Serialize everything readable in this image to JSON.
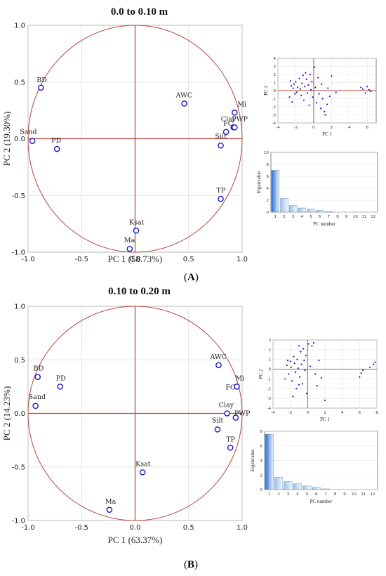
{
  "figure": {
    "panels": [
      {
        "id": "A",
        "label_open": "(",
        "label_letter": "A",
        "label_close": ")",
        "chart_data": {
          "type": "scatter",
          "title": "0.0 to 0.10 m",
          "xlabel": "PC 1 (58.73%)",
          "ylabel": "PC 2 (19.30%)",
          "xlim": [
            -1.0,
            1.0
          ],
          "ylim": [
            -1.0,
            1.0
          ],
          "xticks": [
            "-1.0",
            "-0.5",
            "0.0",
            "0.5",
            "1.0"
          ],
          "yticks": [
            "1.0",
            "0.5",
            "0.0",
            "-0.5",
            "-1.0"
          ],
          "points": [
            {
              "label": "BD",
              "x": -0.88,
              "y": 0.45
            },
            {
              "label": "Sand",
              "x": -0.96,
              "y": -0.02
            },
            {
              "label": "PD",
              "x": -0.73,
              "y": -0.09
            },
            {
              "label": "AWC",
              "x": 0.46,
              "y": 0.31
            },
            {
              "label": "FC",
              "x": 0.85,
              "y": 0.06
            },
            {
              "label": "Mi",
              "x": 0.93,
              "y": 0.23
            },
            {
              "label": "Clay",
              "x": 0.92,
              "y": 0.1
            },
            {
              "label": "PWP",
              "x": 0.93,
              "y": 0.1
            },
            {
              "label": "Silt",
              "x": 0.8,
              "y": -0.06
            },
            {
              "label": "TP",
              "x": 0.8,
              "y": -0.53
            },
            {
              "label": "Ksat",
              "x": 0.01,
              "y": -0.81
            },
            {
              "label": "Ma",
              "x": -0.05,
              "y": -0.97
            }
          ],
          "inset_scores": {
            "xlabel": "PC 1",
            "ylabel": "PC 2",
            "xticks": [
              "-4",
              "-2",
              "0",
              "2",
              "4",
              "6"
            ],
            "yticks": [
              "4",
              "3",
              "2",
              "1",
              "0",
              "-1",
              "-2",
              "-3",
              "-4"
            ],
            "xlim": [
              -4,
              7
            ],
            "ylim": [
              -4,
              4
            ],
            "points": [
              [
                -2.6,
                1.2
              ],
              [
                -2.5,
                0.6
              ],
              [
                -2.3,
                0.3
              ],
              [
                -2.2,
                0.8
              ],
              [
                -2.0,
                1.1
              ],
              [
                -1.9,
                -0.2
              ],
              [
                -1.8,
                0.4
              ],
              [
                -1.6,
                1.5
              ],
              [
                -1.5,
                0.2
              ],
              [
                -1.4,
                -0.6
              ],
              [
                -1.3,
                0.9
              ],
              [
                -1.2,
                1.9
              ],
              [
                -1.1,
                -1.2
              ],
              [
                -1.0,
                0.5
              ],
              [
                -0.9,
                2.2
              ],
              [
                -0.8,
                1.4
              ],
              [
                -0.7,
                -0.3
              ],
              [
                -0.6,
                0.7
              ],
              [
                -0.5,
                -1.8
              ],
              [
                -0.4,
                2.0
              ],
              [
                -0.3,
                0.1
              ],
              [
                -0.2,
                1.1
              ],
              [
                -0.1,
                -0.8
              ],
              [
                0.1,
                2.9
              ],
              [
                0.2,
                0.4
              ],
              [
                0.3,
                -1.5
              ],
              [
                0.5,
                1.6
              ],
              [
                0.6,
                -0.4
              ],
              [
                0.8,
                -2.2
              ],
              [
                0.9,
                0.8
              ],
              [
                1.0,
                -1.0
              ],
              [
                1.2,
                -2.6
              ],
              [
                1.3,
                -3.0
              ],
              [
                1.5,
                -1.7
              ],
              [
                1.6,
                0.3
              ],
              [
                1.8,
                -0.7
              ],
              [
                2.0,
                1.8
              ],
              [
                2.5,
                -0.2
              ],
              [
                -2.7,
                -0.8
              ],
              [
                -2.4,
                -1.4
              ],
              [
                -2.1,
                -0.4
              ],
              [
                5.3,
                0.4
              ],
              [
                5.5,
                0.2
              ],
              [
                5.8,
                -0.3
              ],
              [
                6.0,
                0.5
              ],
              [
                6.2,
                0.1
              ],
              [
                6.4,
                -0.1
              ]
            ]
          },
          "inset_scree": {
            "xlabel": "PC number",
            "ylabel": "Eigenvalue",
            "xticks": [
              "1",
              "2",
              "3",
              "4",
              "5",
              "6",
              "7",
              "8",
              "9",
              "10",
              "11",
              "12"
            ],
            "yticks": [
              "10",
              "8",
              "6",
              "4",
              "2",
              "0"
            ],
            "ylim": [
              0,
              10
            ],
            "values": [
              7.0,
              2.3,
              1.1,
              0.7,
              0.5,
              0.3,
              0.1,
              0.0,
              0.0,
              0.0,
              0.0,
              0.0
            ]
          }
        }
      },
      {
        "id": "B",
        "label_open": "(",
        "label_letter": "B",
        "label_close": ")",
        "chart_data": {
          "type": "scatter",
          "title": "0.10 to 0.20 m",
          "xlabel": "PC 1 (63.37%)",
          "ylabel": "PC 2 (14.23%)",
          "xlim": [
            -1.0,
            1.0
          ],
          "ylim": [
            -1.0,
            1.0
          ],
          "xticks": [
            "-1.0",
            "-0.5",
            "0.0",
            "0.5",
            "1.0"
          ],
          "yticks": [
            "1.0",
            "0.5",
            "0.0",
            "-0.5",
            "-1.0"
          ],
          "points": [
            {
              "label": "BD",
              "x": -0.91,
              "y": 0.34
            },
            {
              "label": "PD",
              "x": -0.7,
              "y": 0.25
            },
            {
              "label": "Sand",
              "x": -0.93,
              "y": 0.07
            },
            {
              "label": "AWC",
              "x": 0.78,
              "y": 0.45
            },
            {
              "label": "FC",
              "x": 0.95,
              "y": 0.25
            },
            {
              "label": "Mi",
              "x": 0.95,
              "y": 0.25
            },
            {
              "label": "Clay",
              "x": 0.86,
              "y": 0.0
            },
            {
              "label": "PWP",
              "x": 0.94,
              "y": -0.04
            },
            {
              "label": "Silt",
              "x": 0.77,
              "y": -0.15
            },
            {
              "label": "TP",
              "x": 0.89,
              "y": -0.32
            },
            {
              "label": "Ksat",
              "x": 0.07,
              "y": -0.55
            },
            {
              "label": "Ma",
              "x": -0.24,
              "y": -0.9
            }
          ],
          "inset_scores": {
            "xlabel": "PC 1",
            "ylabel": "PC 2",
            "xticks": [
              "-4",
              "-2",
              "0",
              "2",
              "4",
              "6",
              "8"
            ],
            "yticks": [
              "3",
              "2",
              "1",
              "0",
              "-1",
              "-2",
              "-3",
              "-4"
            ],
            "xlim": [
              -4,
              8
            ],
            "ylim": [
              -4,
              3
            ],
            "points": [
              [
                -2.4,
                0.4
              ],
              [
                -2.2,
                -0.5
              ],
              [
                -2.0,
                0.8
              ],
              [
                -1.9,
                0.2
              ],
              [
                -1.8,
                -1.2
              ],
              [
                -1.6,
                1.3
              ],
              [
                -1.5,
                0.6
              ],
              [
                -1.4,
                -0.3
              ],
              [
                -1.3,
                -2.0
              ],
              [
                -1.2,
                1.0
              ],
              [
                -1.1,
                0.1
              ],
              [
                -1.0,
                2.4
              ],
              [
                -0.9,
                -0.8
              ],
              [
                -0.8,
                1.8
              ],
              [
                -0.7,
                0.5
              ],
              [
                -0.6,
                -1.5
              ],
              [
                -0.5,
                2.1
              ],
              [
                -0.4,
                0.9
              ],
              [
                -0.3,
                -0.1
              ],
              [
                -0.2,
                1.4
              ],
              [
                -0.1,
                -2.5
              ],
              [
                0.1,
                2.6
              ],
              [
                0.3,
                0.3
              ],
              [
                0.5,
                2.4
              ],
              [
                0.7,
                2.7
              ],
              [
                0.9,
                -0.5
              ],
              [
                1.1,
                -1.7
              ],
              [
                1.3,
                0.9
              ],
              [
                1.6,
                -0.9
              ],
              [
                2.0,
                -3.2
              ],
              [
                -2.6,
                -1.0
              ],
              [
                -2.3,
                0.9
              ],
              [
                -1.7,
                -2.8
              ],
              [
                -1.0,
                -1.6
              ],
              [
                6.0,
                -0.8
              ],
              [
                6.2,
                -0.4
              ],
              [
                6.4,
                -0.1
              ],
              [
                7.2,
                0.2
              ],
              [
                7.6,
                0.5
              ],
              [
                7.8,
                0.7
              ]
            ]
          },
          "inset_scree": {
            "xlabel": "PC number",
            "ylabel": "Eigenvalue",
            "xticks": [
              "1",
              "2",
              "3",
              "4",
              "5",
              "6",
              "7",
              "8",
              "9",
              "10",
              "11",
              "12"
            ],
            "yticks": [
              "8",
              "6",
              "4",
              "2",
              "0"
            ],
            "ylim": [
              0,
              8
            ],
            "values": [
              7.6,
              1.7,
              1.1,
              0.8,
              0.5,
              0.3,
              0.1,
              0.0,
              0.0,
              0.0,
              0.0,
              0.0
            ]
          }
        }
      }
    ]
  }
}
